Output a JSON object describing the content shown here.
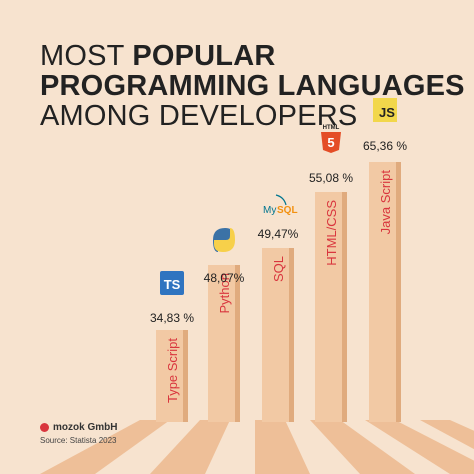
{
  "title": {
    "line1_prefix": "MOST ",
    "line1_bold": "POPULAR",
    "line2": "PROGRAMMING LANGUAGES",
    "line3": "AMONG DEVELOPERS"
  },
  "chart_data": {
    "type": "bar",
    "categories": [
      "Type Script",
      "Python",
      "SQL",
      "HTML/CSS",
      "Java Script"
    ],
    "values": [
      34.83,
      48.07,
      49.47,
      55.08,
      65.36
    ],
    "value_labels": [
      "34,83 %",
      "48,07%",
      "49,47%",
      "55,08 %",
      "65,36 %"
    ],
    "icons": [
      "typescript-icon",
      "python-icon",
      "mysql-icon",
      "html5-icon",
      "javascript-icon"
    ],
    "icon_texts": [
      "TS",
      "",
      "MySQL",
      "HTML",
      "JS"
    ],
    "ylim": [
      0,
      70
    ],
    "colors": {
      "bar": "#f2c9a4",
      "bar_edge": "#e0ab7e",
      "label": "#d9363e",
      "text": "#222222"
    }
  },
  "brand": {
    "name": "mozok GmbH",
    "source": "Source: Statista 2023"
  }
}
